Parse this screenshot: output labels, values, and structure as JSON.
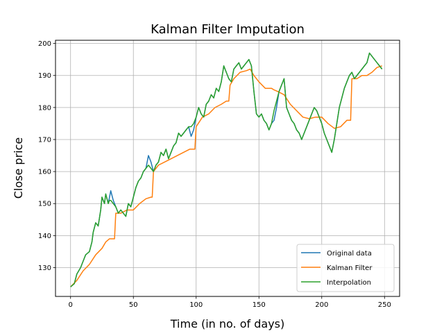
{
  "chart_data": {
    "type": "line",
    "title": "Kalman Filter Imputation",
    "xlabel": "Time (in no. of days)",
    "ylabel": "Close price",
    "xlim": [
      -12,
      262
    ],
    "ylim": [
      121,
      201
    ],
    "xticks": [
      0,
      50,
      100,
      150,
      200,
      250
    ],
    "yticks": [
      130,
      140,
      150,
      160,
      170,
      180,
      190,
      200
    ],
    "grid": true,
    "legend_position": "lower-right",
    "series": [
      {
        "name": "Original data",
        "color": "#1f77b4",
        "points": [
          [
            0,
            124
          ],
          [
            3,
            125
          ],
          [
            5,
            128
          ],
          [
            8,
            130
          ],
          [
            10,
            132
          ],
          [
            12,
            134
          ],
          [
            15,
            135
          ],
          [
            17,
            138
          ],
          [
            18,
            141
          ],
          [
            20,
            144
          ],
          [
            22,
            143
          ],
          [
            24,
            148
          ],
          [
            25,
            152
          ],
          [
            27,
            150
          ],
          [
            28,
            153
          ],
          [
            30,
            150
          ],
          [
            31,
            152
          ],
          [
            32,
            154
          ],
          [
            34,
            151
          ],
          [
            36,
            149
          ],
          [
            38,
            147
          ],
          [
            40,
            148
          ],
          [
            42,
            147
          ],
          [
            44,
            146
          ],
          [
            46,
            150
          ],
          [
            48,
            149
          ],
          [
            50,
            152
          ],
          [
            52,
            155
          ],
          [
            54,
            157
          ],
          [
            56,
            158
          ],
          [
            58,
            160
          ],
          [
            60,
            161
          ],
          [
            62,
            165
          ],
          [
            64,
            163
          ],
          [
            66,
            160
          ],
          [
            68,
            162
          ],
          [
            70,
            163
          ],
          [
            72,
            166
          ],
          [
            74,
            165
          ],
          [
            76,
            167
          ],
          [
            78,
            164
          ],
          [
            80,
            166
          ],
          [
            82,
            168
          ],
          [
            84,
            169
          ],
          [
            86,
            172
          ],
          [
            88,
            171
          ],
          [
            90,
            172
          ],
          [
            92,
            173
          ],
          [
            94,
            174
          ],
          [
            96,
            171
          ],
          [
            98,
            173
          ],
          [
            100,
            177
          ],
          [
            102,
            180
          ],
          [
            104,
            178
          ],
          [
            106,
            177
          ],
          [
            108,
            181
          ],
          [
            110,
            182
          ],
          [
            112,
            184
          ],
          [
            114,
            183
          ],
          [
            116,
            186
          ],
          [
            118,
            185
          ],
          [
            120,
            188
          ],
          [
            122,
            193
          ],
          [
            124,
            191
          ],
          [
            126,
            189
          ],
          [
            128,
            188
          ],
          [
            130,
            192
          ],
          [
            132,
            193
          ],
          [
            134,
            194
          ],
          [
            136,
            192
          ],
          [
            138,
            193
          ],
          [
            140,
            194
          ],
          [
            142,
            195
          ],
          [
            144,
            193
          ],
          [
            146,
            185
          ],
          [
            148,
            178
          ],
          [
            150,
            177
          ],
          [
            152,
            178
          ],
          [
            154,
            176
          ],
          [
            156,
            175
          ],
          [
            158,
            173
          ],
          [
            160,
            175
          ],
          [
            162,
            176
          ],
          [
            164,
            180
          ],
          [
            166,
            185
          ],
          [
            168,
            187
          ],
          [
            170,
            189
          ],
          [
            172,
            180
          ],
          [
            174,
            178
          ],
          [
            176,
            176
          ],
          [
            178,
            175
          ],
          [
            180,
            173
          ],
          [
            182,
            172
          ],
          [
            184,
            170
          ],
          [
            186,
            172
          ],
          [
            188,
            174
          ],
          [
            190,
            176
          ],
          [
            192,
            178
          ],
          [
            194,
            180
          ],
          [
            196,
            179
          ],
          [
            198,
            177
          ],
          [
            200,
            175
          ],
          [
            202,
            172
          ],
          [
            204,
            170
          ],
          [
            206,
            168
          ],
          [
            208,
            166
          ],
          [
            210,
            170
          ],
          [
            212,
            175
          ],
          [
            214,
            180
          ],
          [
            216,
            183
          ],
          [
            218,
            186
          ],
          [
            220,
            188
          ],
          [
            222,
            190
          ],
          [
            224,
            191
          ],
          [
            226,
            189
          ],
          [
            228,
            190
          ],
          [
            230,
            191
          ],
          [
            232,
            192
          ],
          [
            234,
            193
          ],
          [
            236,
            194
          ],
          [
            238,
            197
          ],
          [
            240,
            196
          ],
          [
            242,
            195
          ],
          [
            244,
            194
          ],
          [
            246,
            193
          ],
          [
            248,
            192
          ]
        ]
      },
      {
        "name": "Kalman Filter",
        "color": "#ff7f0e",
        "points": [
          [
            0,
            124
          ],
          [
            5,
            126
          ],
          [
            10,
            129
          ],
          [
            15,
            131
          ],
          [
            20,
            134
          ],
          [
            25,
            136
          ],
          [
            28,
            138
          ],
          [
            31,
            139
          ],
          [
            34,
            139
          ],
          [
            35,
            139
          ],
          [
            36,
            147
          ],
          [
            40,
            147
          ],
          [
            45,
            148
          ],
          [
            50,
            148
          ],
          [
            55,
            150
          ],
          [
            60,
            151.5
          ],
          [
            64,
            152
          ],
          [
            65,
            152
          ],
          [
            66,
            160
          ],
          [
            70,
            162
          ],
          [
            75,
            163
          ],
          [
            80,
            164
          ],
          [
            85,
            165
          ],
          [
            90,
            166
          ],
          [
            95,
            167
          ],
          [
            98,
            167
          ],
          [
            99,
            167
          ],
          [
            100,
            174
          ],
          [
            105,
            177
          ],
          [
            110,
            178
          ],
          [
            115,
            180
          ],
          [
            120,
            181
          ],
          [
            124,
            182
          ],
          [
            126,
            182
          ],
          [
            127,
            187
          ],
          [
            130,
            189
          ],
          [
            135,
            191
          ],
          [
            140,
            191.5
          ],
          [
            143,
            192
          ],
          [
            146,
            190
          ],
          [
            150,
            188
          ],
          [
            155,
            186
          ],
          [
            160,
            186
          ],
          [
            162,
            185.5
          ],
          [
            165,
            185
          ],
          [
            170,
            184
          ],
          [
            175,
            181
          ],
          [
            180,
            179
          ],
          [
            185,
            177
          ],
          [
            190,
            176.5
          ],
          [
            195,
            177
          ],
          [
            200,
            177
          ],
          [
            205,
            175
          ],
          [
            210,
            173.5
          ],
          [
            215,
            174
          ],
          [
            220,
            176
          ],
          [
            223,
            176
          ],
          [
            224,
            189
          ],
          [
            228,
            189
          ],
          [
            232,
            190
          ],
          [
            236,
            190
          ],
          [
            240,
            191
          ],
          [
            244,
            192.5
          ],
          [
            248,
            193
          ]
        ]
      },
      {
        "name": "Interpolation",
        "color": "#2ca02c",
        "points": [
          [
            0,
            124
          ],
          [
            3,
            125
          ],
          [
            5,
            128
          ],
          [
            8,
            130
          ],
          [
            10,
            132
          ],
          [
            12,
            134
          ],
          [
            15,
            135
          ],
          [
            17,
            138
          ],
          [
            18,
            141
          ],
          [
            20,
            144
          ],
          [
            22,
            143
          ],
          [
            24,
            148
          ],
          [
            25,
            152
          ],
          [
            27,
            150
          ],
          [
            28,
            153
          ],
          [
            30,
            150
          ],
          [
            31,
            151
          ],
          [
            32,
            151
          ],
          [
            34,
            150
          ],
          [
            36,
            149
          ],
          [
            38,
            147
          ],
          [
            40,
            148
          ],
          [
            42,
            147
          ],
          [
            44,
            146
          ],
          [
            46,
            150
          ],
          [
            48,
            149
          ],
          [
            50,
            152
          ],
          [
            52,
            155
          ],
          [
            54,
            157
          ],
          [
            56,
            158
          ],
          [
            58,
            160
          ],
          [
            60,
            161
          ],
          [
            62,
            162
          ],
          [
            64,
            161
          ],
          [
            66,
            160
          ],
          [
            68,
            162
          ],
          [
            70,
            163
          ],
          [
            72,
            166
          ],
          [
            74,
            165
          ],
          [
            76,
            167
          ],
          [
            78,
            164
          ],
          [
            80,
            166
          ],
          [
            82,
            168
          ],
          [
            84,
            169
          ],
          [
            86,
            172
          ],
          [
            88,
            171
          ],
          [
            90,
            172
          ],
          [
            92,
            173
          ],
          [
            94,
            174
          ],
          [
            96,
            174
          ],
          [
            98,
            175
          ],
          [
            100,
            177
          ],
          [
            102,
            180
          ],
          [
            104,
            178
          ],
          [
            106,
            177
          ],
          [
            108,
            181
          ],
          [
            110,
            182
          ],
          [
            112,
            184
          ],
          [
            114,
            183
          ],
          [
            116,
            186
          ],
          [
            118,
            185
          ],
          [
            120,
            188
          ],
          [
            122,
            193
          ],
          [
            124,
            191
          ],
          [
            126,
            189
          ],
          [
            128,
            188
          ],
          [
            130,
            192
          ],
          [
            132,
            193
          ],
          [
            134,
            194
          ],
          [
            136,
            192
          ],
          [
            138,
            193
          ],
          [
            140,
            194
          ],
          [
            142,
            195
          ],
          [
            144,
            193
          ],
          [
            146,
            185
          ],
          [
            148,
            178
          ],
          [
            150,
            177
          ],
          [
            152,
            178
          ],
          [
            154,
            176
          ],
          [
            156,
            175
          ],
          [
            158,
            173
          ],
          [
            160,
            175
          ],
          [
            162,
            179
          ],
          [
            164,
            182
          ],
          [
            166,
            185
          ],
          [
            168,
            187
          ],
          [
            170,
            189
          ],
          [
            172,
            180
          ],
          [
            174,
            178
          ],
          [
            176,
            176
          ],
          [
            178,
            175
          ],
          [
            180,
            173
          ],
          [
            182,
            172
          ],
          [
            184,
            170
          ],
          [
            186,
            172
          ],
          [
            188,
            174
          ],
          [
            190,
            176
          ],
          [
            192,
            178
          ],
          [
            194,
            180
          ],
          [
            196,
            179
          ],
          [
            198,
            177
          ],
          [
            200,
            175
          ],
          [
            202,
            172
          ],
          [
            204,
            170
          ],
          [
            206,
            168
          ],
          [
            208,
            166
          ],
          [
            210,
            170
          ],
          [
            212,
            175
          ],
          [
            214,
            180
          ],
          [
            216,
            183
          ],
          [
            218,
            186
          ],
          [
            220,
            188
          ],
          [
            222,
            190
          ],
          [
            224,
            191
          ],
          [
            226,
            189
          ],
          [
            228,
            190
          ],
          [
            230,
            191
          ],
          [
            232,
            192
          ],
          [
            234,
            193
          ],
          [
            236,
            194
          ],
          [
            238,
            197
          ],
          [
            240,
            196
          ],
          [
            242,
            195
          ],
          [
            244,
            194
          ],
          [
            246,
            193
          ],
          [
            248,
            192
          ]
        ]
      }
    ]
  }
}
